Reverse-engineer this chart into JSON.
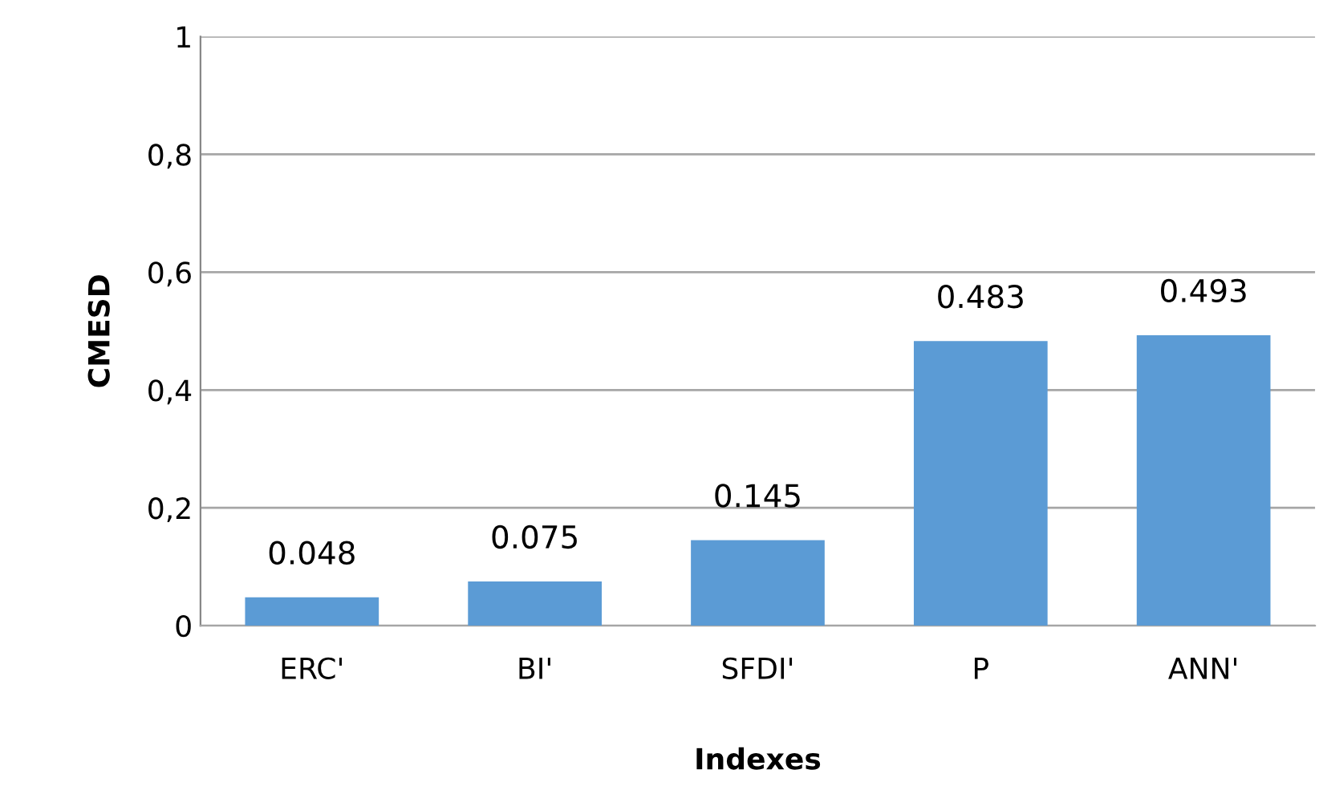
{
  "chart_data": {
    "type": "bar",
    "xlabel": "Indexes",
    "ylabel": "CMESD",
    "categories": [
      "ERC'",
      "BI'",
      "SFDI'",
      "P",
      "ANN'"
    ],
    "values": [
      0.048,
      0.075,
      0.145,
      0.483,
      0.493
    ],
    "color": "#5b9bd5",
    "ylim": [
      0,
      1
    ],
    "yticks": [
      0,
      {
        "value": 0.2,
        "label": "0,2"
      },
      {
        "value": 0.4,
        "label": "0,4"
      },
      {
        "value": 0.6,
        "label": "0,6"
      },
      {
        "value": 0.8,
        "label": "0,8"
      },
      1
    ],
    "grid": "y",
    "data_labels": true
  }
}
